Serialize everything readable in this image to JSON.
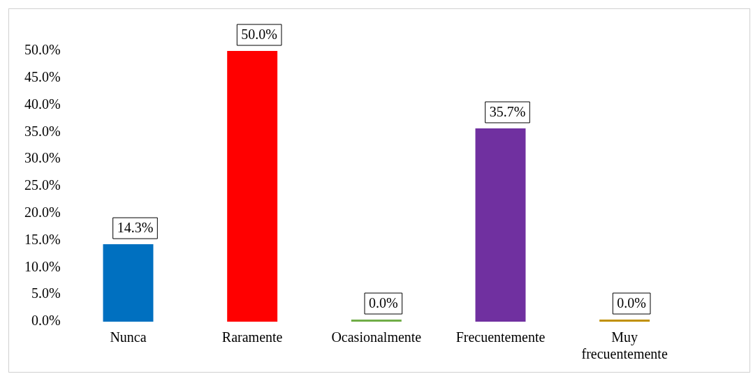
{
  "chart_data": {
    "type": "bar",
    "categories": [
      "Nunca",
      "Raramente",
      "Ocasionalmente",
      "Frecuentemente",
      "Muy frecuentemente"
    ],
    "values": [
      14.3,
      50.0,
      0.0,
      35.7,
      0.0
    ],
    "colors": [
      "#0070c0",
      "#ff0000",
      "#70ad47",
      "#7030a0",
      "#c09000"
    ],
    "value_labels": [
      "14.3%",
      "50.0%",
      "0.0%",
      "35.7%",
      "0.0%"
    ],
    "ylim": [
      0,
      50
    ],
    "yticks": [
      {
        "value": 0,
        "label": "0.0%"
      },
      {
        "value": 5,
        "label": "5.0%"
      },
      {
        "value": 10,
        "label": "10.0%"
      },
      {
        "value": 15,
        "label": "15.0%"
      },
      {
        "value": 20,
        "label": "20.0%"
      },
      {
        "value": 25,
        "label": "25.0%"
      },
      {
        "value": 30,
        "label": "30.0%"
      },
      {
        "value": 35,
        "label": "35.0%"
      },
      {
        "value": 40,
        "label": "40.0%"
      },
      {
        "value": 45,
        "label": "45.0%"
      },
      {
        "value": 50,
        "label": "50.0%"
      }
    ],
    "grid": false,
    "legend": false
  }
}
